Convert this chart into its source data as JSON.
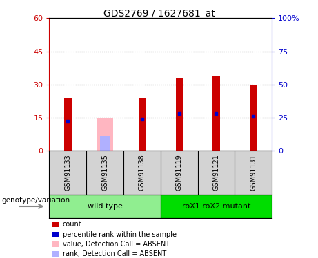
{
  "title": "GDS2769 / 1627681_at",
  "samples": [
    "GSM91133",
    "GSM91135",
    "GSM91138",
    "GSM91119",
    "GSM91121",
    "GSM91131"
  ],
  "count_values": [
    24,
    0,
    24,
    33,
    34,
    30
  ],
  "percentile_values": [
    13.5,
    0,
    14.5,
    17,
    17,
    15.5
  ],
  "absent_value_bar": [
    0,
    15,
    0,
    0,
    0,
    0
  ],
  "absent_rank_bar": [
    0,
    7,
    0,
    0,
    0,
    0
  ],
  "groups": [
    {
      "label": "wild type",
      "indices": [
        0,
        1,
        2
      ],
      "color": "#90EE90"
    },
    {
      "label": "roX1 roX2 mutant",
      "indices": [
        3,
        4,
        5
      ],
      "color": "#00DD00"
    }
  ],
  "absent_samples": [
    1
  ],
  "ylim_left": [
    0,
    60
  ],
  "ylim_right": [
    0,
    100
  ],
  "yticks_left": [
    0,
    15,
    30,
    45,
    60
  ],
  "yticks_right": [
    0,
    25,
    50,
    75,
    100
  ],
  "ytick_labels_right": [
    "0",
    "25",
    "50",
    "75",
    "100%"
  ],
  "count_color": "#cc0000",
  "percentile_color": "#0000cc",
  "absent_value_color": "#ffb6c1",
  "absent_rank_color": "#b0b0ff",
  "left_axis_color": "#cc0000",
  "right_axis_color": "#0000cc",
  "label_area_color": "#d3d3d3",
  "genotype_label": "genotype/variation",
  "legend_items": [
    {
      "color": "#cc0000",
      "label": "count"
    },
    {
      "color": "#0000cc",
      "label": "percentile rank within the sample"
    },
    {
      "color": "#ffb6c1",
      "label": "value, Detection Call = ABSENT"
    },
    {
      "color": "#b0b0ff",
      "label": "rank, Detection Call = ABSENT"
    }
  ]
}
